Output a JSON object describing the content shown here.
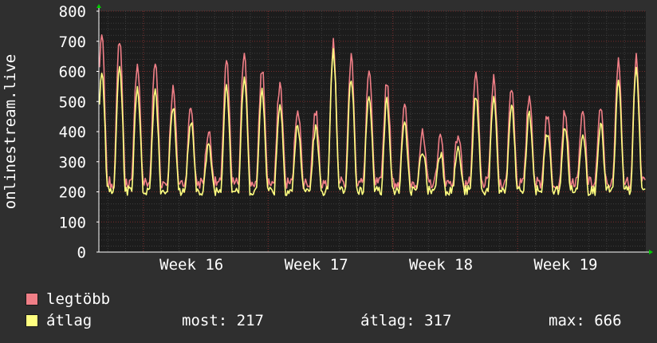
{
  "chart_data": {
    "type": "line",
    "title": "",
    "ylabel": "onlinestream.live",
    "ylim": [
      0,
      800
    ],
    "yticks": [
      0,
      100,
      200,
      300,
      400,
      500,
      600,
      700,
      800
    ],
    "xticks": [
      "Week 16",
      "Week 17",
      "Week 18",
      "Week 19"
    ],
    "grid": true,
    "legend_placement": "bottom-left",
    "series": [
      {
        "name": "legtöbb",
        "color": "#f07f87",
        "approx_daily_peaks": [
          720,
          710,
          630,
          630,
          540,
          480,
          400,
          640,
          670,
          610,
          560,
          480,
          470,
          690,
          650,
          600,
          570,
          480,
          390,
          380,
          390,
          590,
          570,
          550,
          520,
          460,
          470,
          460,
          470,
          630,
          650
        ]
      },
      {
        "name": "átlag",
        "color": "#ffff80",
        "approx_daily_peaks": [
          610,
          620,
          550,
          540,
          480,
          430,
          350,
          560,
          580,
          540,
          490,
          420,
          410,
          660,
          580,
          530,
          500,
          420,
          340,
          330,
          340,
          520,
          500,
          480,
          460,
          400,
          410,
          400,
          420,
          560,
          600
        ]
      }
    ]
  },
  "legend": {
    "max_label": "legtöbb",
    "avg_label": "átlag",
    "now_text": "most: 217",
    "avg_text": "átlag: 317",
    "peak_text": "max: 666"
  },
  "colors": {
    "background": "#2f2f2f",
    "plot_background": "#1c1c1c",
    "grid": "#3e3e3e",
    "grid_minor": "#7a2a2a",
    "axis": "#ffffff"
  }
}
